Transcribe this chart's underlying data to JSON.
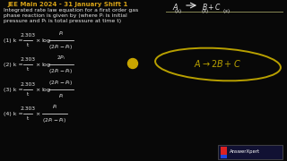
{
  "bg_color": "#080808",
  "title_color": "#d4a017",
  "text_color": "#e8e8e8",
  "title": "JEE Main 2024 - 31 January Shift 1",
  "desc_lines": [
    "Integrated rate law equation for a first order gas",
    "phase reaction is given by (where Pᵢ is initial",
    "pressure and Pₜ is total pressure at time t)"
  ],
  "options": [
    [
      "(1) k =",
      "2.303",
      "t",
      "\\times \\log",
      "P_i",
      "(2P_i - P_t)"
    ],
    [
      "(2) k =",
      "2.303",
      "t",
      "\\times \\log",
      "2P_i",
      "(2P_i - P_t)"
    ],
    [
      "(3) k =",
      "2.303",
      "t",
      "\\times \\log",
      "(2P_i - P_t)",
      "P_i"
    ],
    [
      "(4) k =",
      "2.303",
      "t",
      "\\times",
      "P_i",
      "(2P_i - P_t)"
    ]
  ],
  "option_labels": [
    "(1)",
    "(2)",
    "(3)",
    "(4)"
  ],
  "watermark": "AnswerXpert",
  "dot_color": "#c8a500",
  "oval_color": "#b8a000",
  "line_color": "#888855",
  "watermark_bg": "#1a1a2e",
  "watermark_text_color": "#ffffff"
}
